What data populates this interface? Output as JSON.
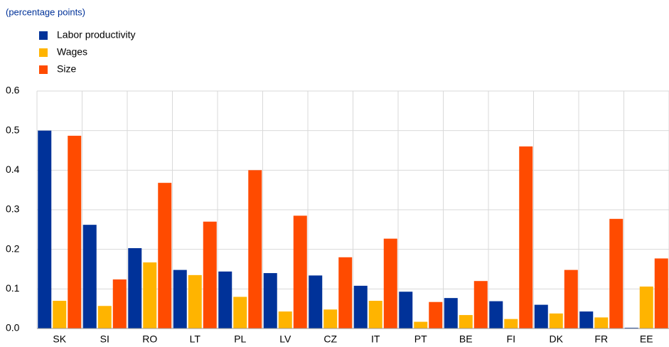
{
  "chart_data": {
    "type": "bar",
    "subtitle": "(percentage points)",
    "categories": [
      "SK",
      "SI",
      "RO",
      "LT",
      "PL",
      "LV",
      "CZ",
      "IT",
      "PT",
      "BE",
      "FI",
      "DK",
      "FR",
      "EE"
    ],
    "series": [
      {
        "name": "Labor productivity",
        "color": "#003299",
        "values": [
          0.5,
          0.262,
          0.203,
          0.148,
          0.144,
          0.14,
          0.134,
          0.108,
          0.093,
          0.077,
          0.069,
          0.06,
          0.043,
          0.002
        ]
      },
      {
        "name": "Wages",
        "color": "#ffb400",
        "values": [
          0.07,
          0.057,
          0.167,
          0.135,
          0.08,
          0.043,
          0.048,
          0.07,
          0.017,
          0.034,
          0.024,
          0.038,
          0.028,
          0.106
        ]
      },
      {
        "name": "Size",
        "color": "#ff4b00",
        "values": [
          0.487,
          0.124,
          0.368,
          0.27,
          0.4,
          0.285,
          0.18,
          0.227,
          0.067,
          0.12,
          0.46,
          0.148,
          0.277,
          0.177
        ]
      }
    ],
    "ylim": [
      0,
      0.6
    ],
    "yticks": [
      {
        "value": 0,
        "label": "0.0"
      },
      0.1,
      0.2,
      0.3,
      0.4,
      0.5,
      0.6
    ],
    "grid": true
  }
}
